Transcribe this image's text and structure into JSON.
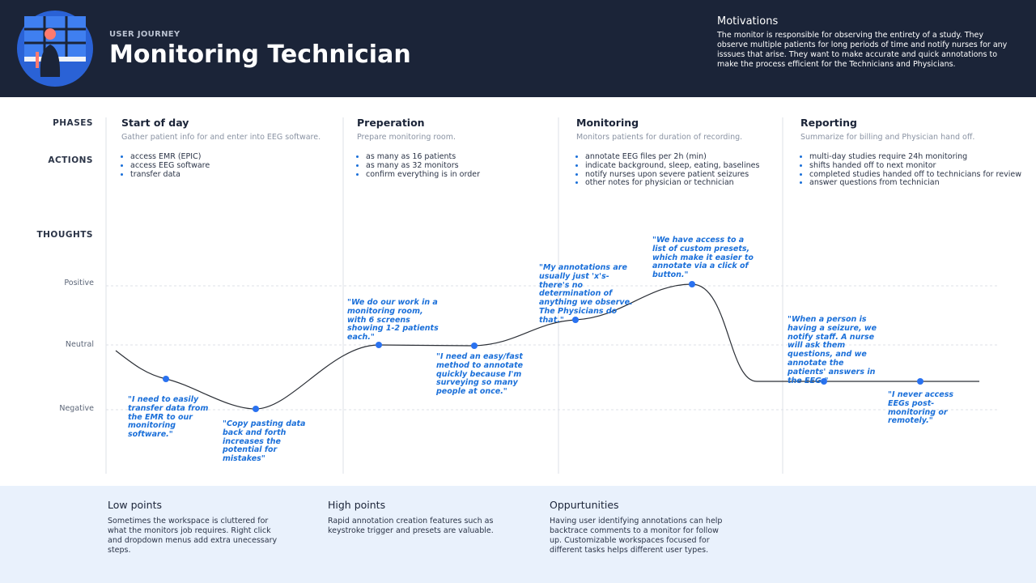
{
  "header": {
    "eyebrow": "USER JOURNEY",
    "title": "Monitoring Technician",
    "motivations": {
      "title": "Motivations",
      "text": "The monitor is responsible for observing the entirety of a study. They observe multiple patients for long periods of time and notify nurses for any isssues that arise. They want to make accurate and quick annotations to make the process efficient for the Technicians and Physicians."
    }
  },
  "row_labels": {
    "phases": "PHASES",
    "actions": "ACTIONS",
    "thoughts": "THOUGHTS"
  },
  "levels": [
    "Positive",
    "Neutral",
    "Negative"
  ],
  "phases": [
    {
      "title": "Start of day",
      "description": "Gather patient info for and enter into EEG software.",
      "actions": [
        "access EMR (EPIC)",
        "access EEG software",
        "transfer data"
      ]
    },
    {
      "title": "Preperation",
      "description": "Prepare monitoring room.",
      "actions": [
        "as many as 16 patients",
        "as many as 32 monitors",
        "confirm everything is in order"
      ]
    },
    {
      "title": "Monitoring",
      "description": "Monitors patients for duration of recording.",
      "actions": [
        "annotate EEG files per 2h (min)",
        "indicate background, sleep, eating, baselines",
        "notify nurses upon severe patient seizures",
        "other notes for physician or technician"
      ]
    },
    {
      "title": "Reporting",
      "description": "Summarize for billing and  Physician hand off.",
      "actions": [
        "multi-day  studies require 24h monitoring",
        "shifts handed off to next monitor",
        "completed studies handed off to technicians for review",
        "answer questions from technician"
      ]
    }
  ],
  "thoughts": [
    "\"I need to easily transfer data from the EMR to our monitoring software.\"",
    "\"Copy pasting data back and forth increases the potential for mistakes\"",
    "\"We do our work in a monitoring room, with 6 screens showing 1-2 patients each.\"",
    "\"I need an easy/fast method to annotate quickly because I'm surveying so many people at once.\"",
    "\"My annotations are usually just 'x's- there's no determination of anything we observe. The Physicians do that.\"",
    "\"We have access to a list of custom presets, which make it easier to annotate via a click of button.\"",
    "\"When a person is having a seizure, we notify staff. A nurse will ask them questions, and we annotate the patients' answers in the EEG.\"",
    "\"I never access EEGs post-monitoring or remotely.\""
  ],
  "footer": [
    {
      "title": "Low points",
      "text": "Sometimes the workspace is cluttered for what the monitors job requires. Right click and dropdown menus add extra unecessary steps."
    },
    {
      "title": "High points",
      "text": "Rapid annotation creation features such as keystroke trigger and presets are valuable."
    },
    {
      "title": "Oppurtunities",
      "text": "Having user identifying annotations can help backtrace comments to a monitor for follow up. Customizable workspaces focused for different tasks helps different user types."
    }
  ]
}
